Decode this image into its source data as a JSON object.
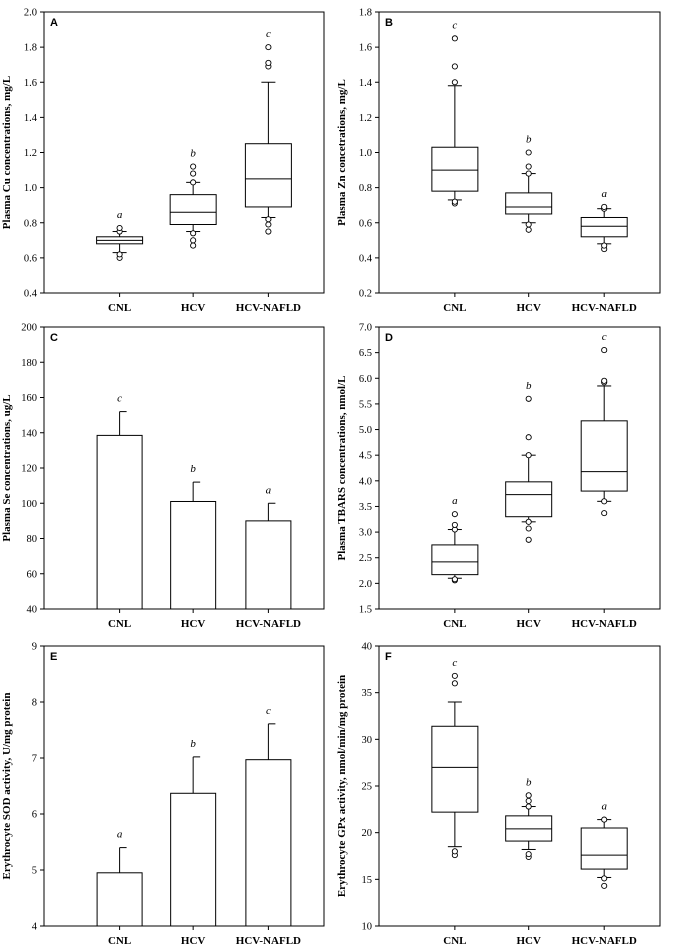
{
  "chart_data": [
    {
      "panel": "A",
      "type": "box",
      "ylabel": "Plasma Cu concentrations, mg/L",
      "ylim": [
        0.4,
        2.0
      ],
      "yticks": [
        0.4,
        0.6,
        0.8,
        1.0,
        1.2,
        1.4,
        1.6,
        1.8,
        2.0
      ],
      "decimals": 1,
      "categories": [
        "CNL",
        "HCV",
        "HCV-NAFLD"
      ],
      "groups": [
        {
          "letter": "a",
          "min": 0.63,
          "q1": 0.68,
          "median": 0.7,
          "q3": 0.72,
          "max": 0.75,
          "outliers": [
            0.6,
            0.62,
            0.75,
            0.77
          ]
        },
        {
          "letter": "b",
          "min": 0.75,
          "q1": 0.79,
          "median": 0.86,
          "q3": 0.96,
          "max": 1.03,
          "outliers": [
            0.67,
            0.7,
            0.74,
            1.03,
            1.08,
            1.12
          ]
        },
        {
          "letter": "c",
          "min": 0.83,
          "q1": 0.89,
          "median": 1.05,
          "q3": 1.25,
          "max": 1.6,
          "outliers": [
            0.75,
            0.79,
            0.82,
            1.69,
            1.71,
            1.8
          ]
        }
      ]
    },
    {
      "panel": "B",
      "type": "box",
      "ylabel": "Plasma Zn concetrations, mg/L",
      "ylim": [
        0.2,
        1.8
      ],
      "yticks": [
        0.2,
        0.4,
        0.6,
        0.8,
        1.0,
        1.2,
        1.4,
        1.6,
        1.8
      ],
      "decimals": 1,
      "categories": [
        "CNL",
        "HCV",
        "HCV-NAFLD"
      ],
      "groups": [
        {
          "letter": "c",
          "min": 0.73,
          "q1": 0.78,
          "median": 0.9,
          "q3": 1.03,
          "max": 1.38,
          "outliers": [
            0.71,
            0.72,
            1.4,
            1.49,
            1.65
          ]
        },
        {
          "letter": "b",
          "min": 0.6,
          "q1": 0.65,
          "median": 0.69,
          "q3": 0.77,
          "max": 0.88,
          "outliers": [
            0.56,
            0.59,
            0.88,
            0.92,
            1.0
          ]
        },
        {
          "letter": "a",
          "min": 0.48,
          "q1": 0.52,
          "median": 0.58,
          "q3": 0.63,
          "max": 0.68,
          "outliers": [
            0.45,
            0.47,
            0.68,
            0.69
          ]
        }
      ]
    },
    {
      "panel": "C",
      "type": "bar",
      "ylabel": "Plasma Se concentrations, ug/L",
      "ylim": [
        40,
        200
      ],
      "yticks": [
        40,
        60,
        80,
        100,
        120,
        140,
        160,
        180,
        200
      ],
      "decimals": 0,
      "categories": [
        "CNL",
        "HCV",
        "HCV-NAFLD"
      ],
      "groups": [
        {
          "letter": "c",
          "value": 138.5,
          "err": 13.5
        },
        {
          "letter": "b",
          "value": 101,
          "err": 11
        },
        {
          "letter": "a",
          "value": 90,
          "err": 10
        }
      ]
    },
    {
      "panel": "D",
      "type": "box",
      "ylabel": "Plasma TBARS concentrations, nmol/L",
      "ylim": [
        1.5,
        7.0
      ],
      "yticks": [
        1.5,
        2.0,
        2.5,
        3.0,
        3.5,
        4.0,
        4.5,
        5.0,
        5.5,
        6.0,
        6.5,
        7.0
      ],
      "decimals": 1,
      "categories": [
        "CNL",
        "HCV",
        "HCV-NAFLD"
      ],
      "groups": [
        {
          "letter": "a",
          "min": 2.1,
          "q1": 2.17,
          "median": 2.42,
          "q3": 2.75,
          "max": 3.05,
          "outliers": [
            2.06,
            2.08,
            3.05,
            3.14,
            3.35
          ]
        },
        {
          "letter": "b",
          "min": 3.2,
          "q1": 3.3,
          "median": 3.73,
          "q3": 3.98,
          "max": 4.5,
          "outliers": [
            2.85,
            3.07,
            3.2,
            4.5,
            4.85,
            5.6
          ]
        },
        {
          "letter": "c",
          "min": 3.6,
          "q1": 3.8,
          "median": 4.18,
          "q3": 5.17,
          "max": 5.85,
          "outliers": [
            3.37,
            3.6,
            5.92,
            5.95,
            6.55
          ]
        }
      ]
    },
    {
      "panel": "E",
      "type": "bar",
      "ylabel": "Erythrocyte SOD activity, U/mg protein",
      "ylim": [
        4,
        9
      ],
      "yticks": [
        4,
        5,
        6,
        7,
        8,
        9
      ],
      "decimals": 0,
      "categories": [
        "CNL",
        "HCV",
        "HCV-NAFLD"
      ],
      "groups": [
        {
          "letter": "a",
          "value": 4.95,
          "err": 0.45
        },
        {
          "letter": "b",
          "value": 6.37,
          "err": 0.65
        },
        {
          "letter": "c",
          "value": 6.97,
          "err": 0.64
        }
      ]
    },
    {
      "panel": "F",
      "type": "box",
      "ylabel": "Erythrocyte GPx activity, nmol/min/mg protein",
      "ylim": [
        10,
        40
      ],
      "yticks": [
        10,
        15,
        20,
        25,
        30,
        35,
        40
      ],
      "decimals": 0,
      "categories": [
        "CNL",
        "HCV",
        "HCV-NAFLD"
      ],
      "groups": [
        {
          "letter": "c",
          "min": 18.5,
          "q1": 22.2,
          "median": 27.0,
          "q3": 31.4,
          "max": 34.0,
          "outliers": [
            17.6,
            18.0,
            36.0,
            36.8
          ]
        },
        {
          "letter": "b",
          "min": 18.2,
          "q1": 19.1,
          "median": 20.4,
          "q3": 21.8,
          "max": 22.8,
          "outliers": [
            17.4,
            17.7,
            22.8,
            23.4,
            24.0
          ]
        },
        {
          "letter": "a",
          "min": 15.2,
          "q1": 16.1,
          "median": 17.6,
          "q3": 20.5,
          "max": 21.4,
          "outliers": [
            14.3,
            15.1,
            21.4
          ]
        }
      ]
    }
  ]
}
